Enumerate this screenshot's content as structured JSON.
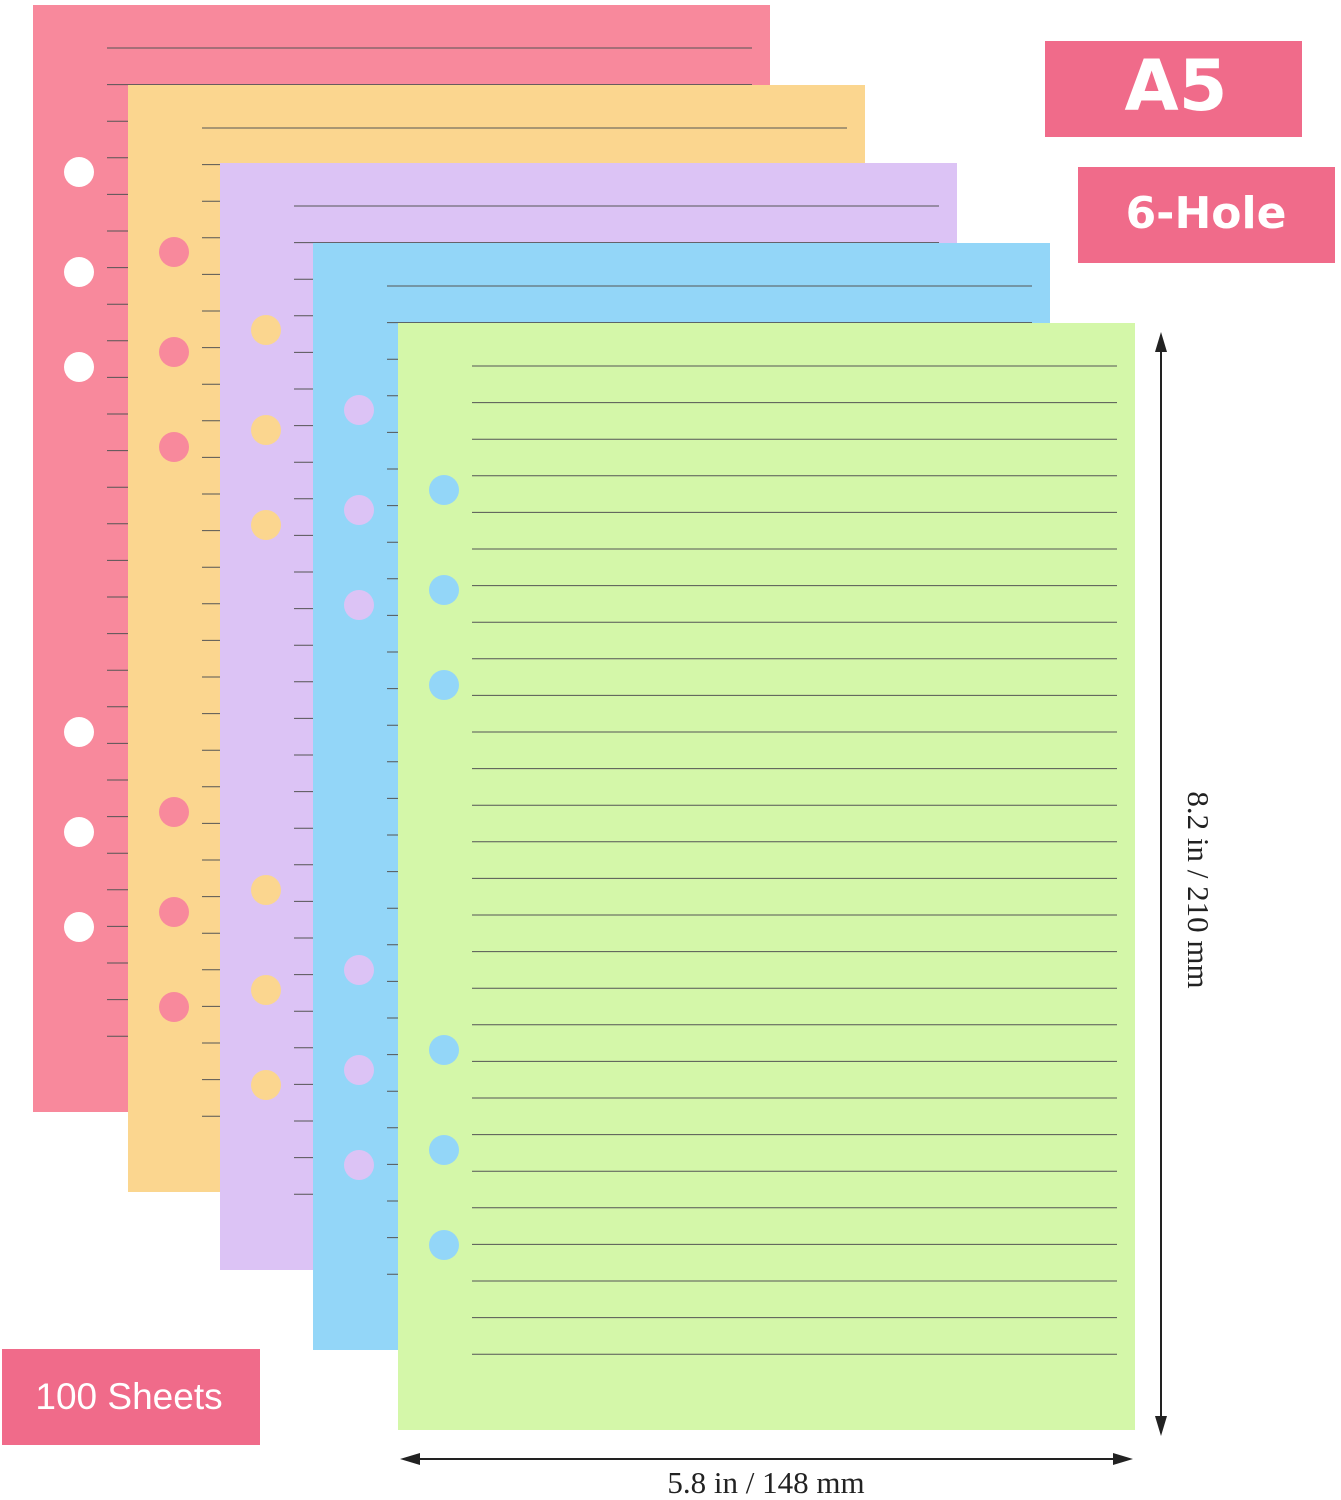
{
  "badges": {
    "size": "A5",
    "holes": "6-Hole",
    "count": "100 Sheets"
  },
  "dimensions": {
    "height": "8.2 in / 210 mm",
    "width": "5.8 in / 148 mm"
  }
}
